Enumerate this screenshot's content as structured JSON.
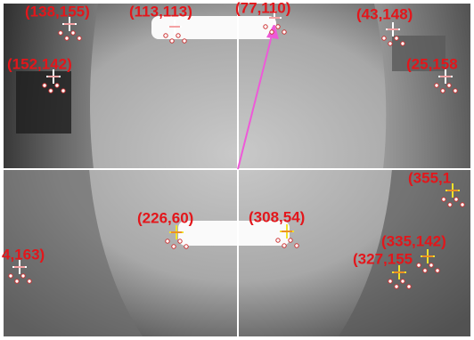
{
  "markers": [
    {
      "label": "(138,155)",
      "color": "#ffffff"
    },
    {
      "label": "(113,113)",
      "color": "#ffffff"
    },
    {
      "label": "(77,110)",
      "color": "#ffffff"
    },
    {
      "label": "(43,148)",
      "color": "#ffffff"
    },
    {
      "label": "(152,142)",
      "color": "#ffffff"
    },
    {
      "label": "(25,158",
      "color": "#ffffff"
    },
    {
      "label": "(355,1",
      "color": "#f2e22a"
    },
    {
      "label": "(226,60)",
      "color": "#f2e22a"
    },
    {
      "label": "(308,54)",
      "color": "#f2e22a"
    },
    {
      "label": "4,163)",
      "color": "#ffffff"
    },
    {
      "label": "(335,142)",
      "color": "#f2e22a"
    },
    {
      "label": "(327,155",
      "color": "#f2e22a"
    }
  ]
}
